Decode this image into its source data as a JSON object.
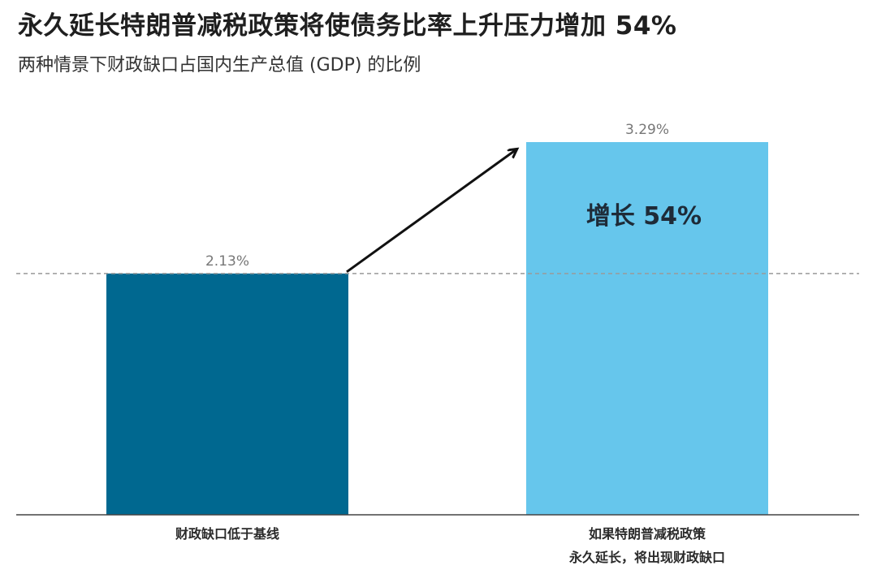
{
  "header": {
    "title": "永久延长特朗普减税政策将使债务比率上升压力增加 54%",
    "subtitle": "两种情景下财政缺口占国内生产总值 (GDP) 的比例"
  },
  "chart_data": {
    "type": "bar",
    "title": "永久延长特朗普减税政策将使债务比率上升压力增加 54%",
    "subtitle": "两种情景下财政缺口占国内生产总值 (GDP) 的比例",
    "categories": [
      [
        "财政缺口低于基线"
      ],
      [
        "如果特朗普减税政策",
        "永久延长，将出现财政缺口"
      ]
    ],
    "values": [
      2.13,
      3.29
    ],
    "value_labels": [
      "2.13%",
      "3.29%"
    ],
    "colors": [
      "#006890",
      "#66c6ec"
    ],
    "ylim": [
      0,
      3.29
    ],
    "grid": false,
    "legend": "none",
    "reference_line": {
      "value": 2.13,
      "style": "dashed"
    },
    "annotation": {
      "text": "增长 54%",
      "bar_index": 1
    },
    "arrow": {
      "from_bar": 0,
      "to_bar": 1
    }
  }
}
